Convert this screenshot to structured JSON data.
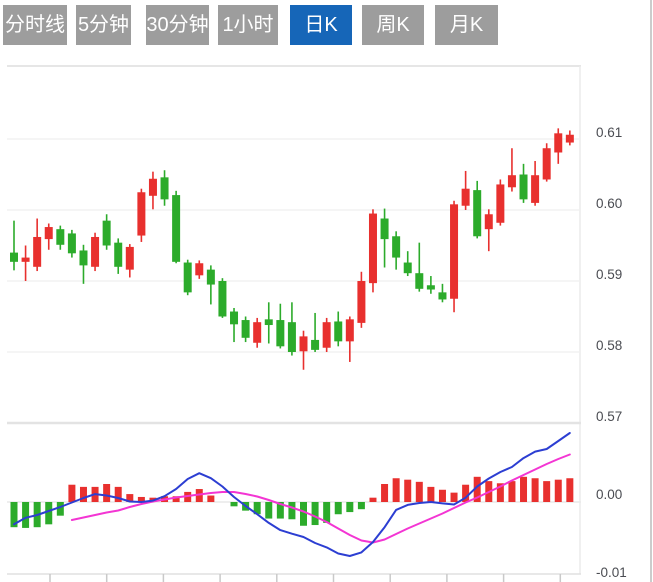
{
  "tabs": {
    "active_index": 4,
    "items": [
      {
        "label": "分时线"
      },
      {
        "label": "5分钟"
      },
      {
        "label": "30分钟"
      },
      {
        "label": "1小时"
      },
      {
        "label": "日K"
      },
      {
        "label": "周K"
      },
      {
        "label": "月K"
      }
    ]
  },
  "colors": {
    "up_candle": "#e8302e",
    "down_candle": "#2cab2b",
    "dif_line": "#2c3ed2",
    "dea_line": "#f335d3",
    "tab_active_bg": "#1666b8",
    "tab_inactive_bg": "#9d9d9d",
    "tab_text": "#ffffff",
    "gridline": "#efefef",
    "panel_divider": "#e3e3e3",
    "axis_text": "#4a4c52",
    "right_border": "#cccccc"
  },
  "price_axis": {
    "labels": [
      "0.61",
      "0.60",
      "0.59",
      "0.58",
      "0.57"
    ],
    "values": [
      0.61,
      0.6,
      0.59,
      0.58,
      0.57
    ]
  },
  "macd_axis": {
    "labels": [
      "0.00",
      "-0.01"
    ],
    "values": [
      0.0,
      -0.01
    ]
  },
  "chart_data": {
    "type": "candlestick",
    "title": "Daily K-line chart with MACD sub-chart",
    "price_ylim": [
      0.5765,
      0.615
    ],
    "macd_ylim": [
      -0.01,
      0.01
    ],
    "grid": true,
    "ohlc_order": [
      "open",
      "high",
      "low",
      "close"
    ],
    "candles": [
      [
        0.594,
        0.5985,
        0.5915,
        0.5927
      ],
      [
        0.5927,
        0.595,
        0.59,
        0.5933
      ],
      [
        0.592,
        0.5988,
        0.5914,
        0.5962
      ],
      [
        0.5959,
        0.5981,
        0.5944,
        0.5976
      ],
      [
        0.5973,
        0.5978,
        0.5944,
        0.5951
      ],
      [
        0.5967,
        0.5972,
        0.5933,
        0.5939
      ],
      [
        0.5943,
        0.5951,
        0.5896,
        0.5922
      ],
      [
        0.592,
        0.5968,
        0.5914,
        0.5962
      ],
      [
        0.5985,
        0.5994,
        0.5944,
        0.595
      ],
      [
        0.5954,
        0.596,
        0.591,
        0.592
      ],
      [
        0.5916,
        0.5952,
        0.5905,
        0.5948
      ],
      [
        0.5964,
        0.603,
        0.5955,
        0.6025
      ],
      [
        0.602,
        0.6054,
        0.6001,
        0.6044
      ],
      [
        0.6046,
        0.6056,
        0.6006,
        0.6015
      ],
      [
        0.6021,
        0.6027,
        0.5925,
        0.5927
      ],
      [
        0.5926,
        0.593,
        0.588,
        0.5884
      ],
      [
        0.5908,
        0.5929,
        0.5903,
        0.5925
      ],
      [
        0.5916,
        0.5922,
        0.5867,
        0.5895
      ],
      [
        0.59,
        0.5904,
        0.5848,
        0.585
      ],
      [
        0.5857,
        0.5862,
        0.5814,
        0.5839
      ],
      [
        0.5845,
        0.585,
        0.5814,
        0.582
      ],
      [
        0.5813,
        0.5848,
        0.5806,
        0.5842
      ],
      [
        0.5846,
        0.587,
        0.5812,
        0.5838
      ],
      [
        0.5845,
        0.5868,
        0.5805,
        0.5808
      ],
      [
        0.5842,
        0.587,
        0.5795,
        0.58
      ],
      [
        0.5801,
        0.583,
        0.5775,
        0.5822
      ],
      [
        0.5817,
        0.5855,
        0.58,
        0.5803
      ],
      [
        0.5806,
        0.5848,
        0.58,
        0.5842
      ],
      [
        0.5843,
        0.5857,
        0.5808,
        0.5815
      ],
      [
        0.5815,
        0.585,
        0.5786,
        0.5846
      ],
      [
        0.5841,
        0.5913,
        0.5834,
        0.59
      ],
      [
        0.5897,
        0.6001,
        0.5884,
        0.5995
      ],
      [
        0.5988,
        0.6002,
        0.5919,
        0.5959
      ],
      [
        0.5963,
        0.597,
        0.5916,
        0.5933
      ],
      [
        0.5926,
        0.5942,
        0.5907,
        0.5911
      ],
      [
        0.5911,
        0.5954,
        0.5885,
        0.5889
      ],
      [
        0.5894,
        0.5907,
        0.5882,
        0.5888
      ],
      [
        0.5884,
        0.5896,
        0.587,
        0.5874
      ],
      [
        0.5875,
        0.6013,
        0.5856,
        0.6008
      ],
      [
        0.6006,
        0.6055,
        0.6,
        0.603
      ],
      [
        0.6028,
        0.6041,
        0.596,
        0.5963
      ],
      [
        0.5973,
        0.6001,
        0.5942,
        0.5994
      ],
      [
        0.5982,
        0.6043,
        0.5978,
        0.6036
      ],
      [
        0.6032,
        0.6087,
        0.6026,
        0.6049
      ],
      [
        0.605,
        0.6065,
        0.601,
        0.6015
      ],
      [
        0.601,
        0.6069,
        0.6006,
        0.6049
      ],
      [
        0.6043,
        0.6094,
        0.604,
        0.6087
      ],
      [
        0.6081,
        0.6115,
        0.6065,
        0.6108
      ],
      [
        0.6095,
        0.6112,
        0.6091,
        0.6106
      ]
    ],
    "macd": {
      "histogram": [
        -0.0035,
        -0.0036,
        -0.0035,
        -0.0031,
        -0.0019,
        0.0024,
        0.0021,
        0.0021,
        0.0025,
        0.0021,
        0.0011,
        0.0007,
        0.0006,
        0.0008,
        0.0008,
        0.0014,
        0.0018,
        0.0009,
        -0.0001,
        -0.0006,
        -0.0012,
        -0.0017,
        -0.0023,
        -0.0023,
        -0.0024,
        -0.0033,
        -0.0032,
        -0.0029,
        -0.0017,
        -0.0014,
        -0.001,
        0.0006,
        0.0025,
        0.0033,
        0.0031,
        0.0028,
        0.0021,
        0.0017,
        0.0013,
        0.0024,
        0.0035,
        0.0029,
        0.0026,
        0.0029,
        0.0035,
        0.0033,
        0.0029,
        0.0031,
        0.0033
      ],
      "dif": [
        -0.0031,
        -0.0022,
        -0.0018,
        -0.00125,
        -0.0007,
        -7e-05,
        0.00055,
        0.0011,
        0.0009,
        0.00055,
        7e-05,
        0,
        0.0002,
        0.0008,
        0.0018,
        0.0032,
        0.004,
        0.0033,
        0.00215,
        0.0007,
        -0.00055,
        -0.0017,
        -0.0029,
        -0.0039,
        -0.0044,
        -0.00486,
        -0.0057,
        -0.0063,
        -0.00715,
        -0.0075,
        -0.007,
        -0.00555,
        -0.0035,
        -0.0011,
        -0.0004,
        -0.00014,
        0,
        -0.0002,
        -0.00035,
        0.0006,
        0.00215,
        0.00326,
        0.00417,
        0.00486,
        0.0061,
        0.007,
        0.00736,
        0.00847,
        0.00958
      ],
      "dea": [
        null,
        null,
        null,
        null,
        null,
        -0.0025,
        -0.00215,
        -0.0018,
        -0.00146,
        -0.00118,
        -0.0007,
        -0.00028,
        7e-05,
        0.00035,
        0.00063,
        0.00083,
        0.00104,
        0.00125,
        0.00139,
        0.00139,
        0.00111,
        0.00076,
        0.00028,
        -0.00028,
        -0.00076,
        -0.00132,
        -0.00201,
        -0.00278,
        -0.00368,
        -0.00458,
        -0.00535,
        -0.00562,
        -0.00521,
        -0.00444,
        -0.00368,
        -0.00299,
        -0.00229,
        -0.0016,
        -0.00083,
        -7e-05,
        0.00063,
        0.00139,
        0.00215,
        0.00299,
        0.00375,
        0.00451,
        0.00528,
        0.00597,
        0.0066
      ]
    }
  }
}
